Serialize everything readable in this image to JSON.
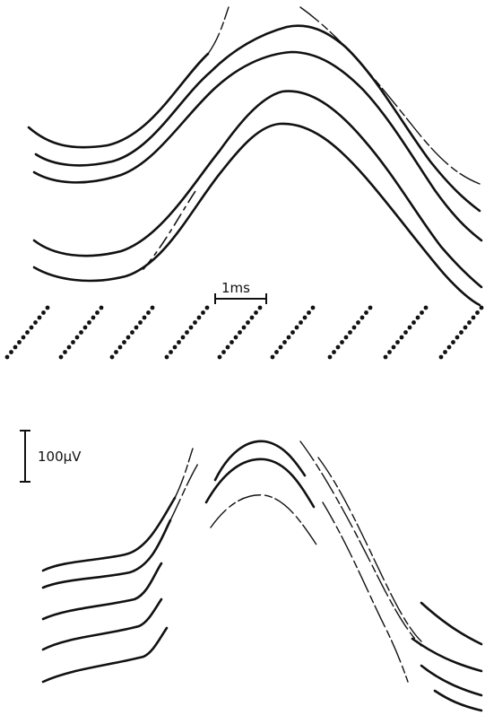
{
  "time_scale": {
    "label": "1ms"
  },
  "voltage_scale": {
    "label": "100μV"
  }
}
